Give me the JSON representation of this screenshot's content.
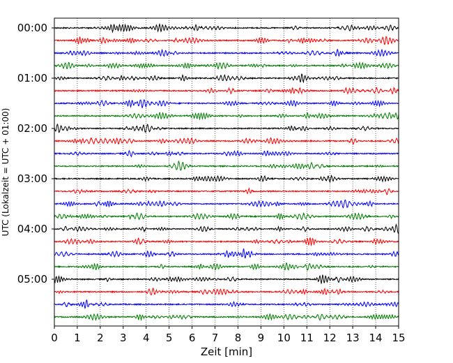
{
  "chart_data": {
    "type": "line",
    "title": "",
    "xlabel": "Zeit  [min]",
    "ylabel": "UTC (Lokalzeit = UTC + 01:00)",
    "xlim": [
      0,
      15
    ],
    "x_ticks": [
      "0",
      "1",
      "2",
      "3",
      "4",
      "5",
      "6",
      "7",
      "8",
      "9",
      "10",
      "11",
      "12",
      "13",
      "14",
      "15"
    ],
    "y_ticks": [
      {
        "row": 0,
        "label": "00:00"
      },
      {
        "row": 4,
        "label": "01:00"
      },
      {
        "row": 8,
        "label": "02:00"
      },
      {
        "row": 12,
        "label": "03:00"
      },
      {
        "row": 16,
        "label": "04:00"
      },
      {
        "row": 20,
        "label": "05:00"
      }
    ],
    "row_count": 24,
    "row_interval_min": 15,
    "grid": {
      "x": true,
      "y": false,
      "style": "dotted"
    },
    "trace_colors": [
      "#000000",
      "#ff0000",
      "#0000ff",
      "#007f00"
    ]
  }
}
